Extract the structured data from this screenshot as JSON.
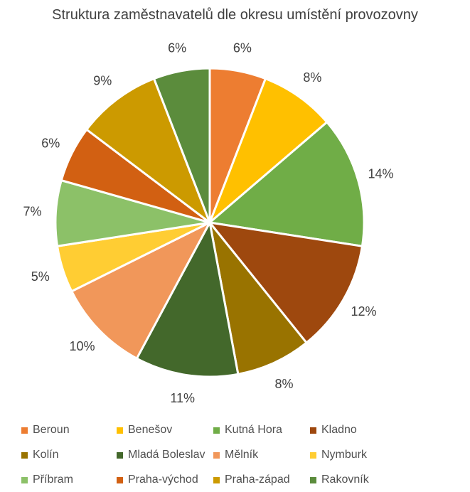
{
  "chart_data": {
    "type": "pie",
    "title": "Struktura zaměstnavatelů dle okresu umístění provozovny",
    "legend_position": "bottom",
    "slices": [
      {
        "label": "Beroun",
        "value": 6,
        "display": "6%",
        "color": "#ED7D31"
      },
      {
        "label": "Benešov",
        "value": 8,
        "display": "8%",
        "color": "#FFC000"
      },
      {
        "label": "Kutná Hora",
        "value": 14,
        "display": "14%",
        "color": "#70AD47"
      },
      {
        "label": "Kladno",
        "value": 12,
        "display": "12%",
        "color": "#9E480E"
      },
      {
        "label": "Kolín",
        "value": 8,
        "display": "8%",
        "color": "#997300"
      },
      {
        "label": "Mladá Boleslav",
        "value": 11,
        "display": "11%",
        "color": "#43682B"
      },
      {
        "label": "Mělník",
        "value": 10,
        "display": "10%",
        "color": "#F1975A"
      },
      {
        "label": "Nymburk",
        "value": 5,
        "display": "5%",
        "color": "#FFCD33"
      },
      {
        "label": "Příbram",
        "value": 7,
        "display": "7%",
        "color": "#8CC168"
      },
      {
        "label": "Praha-východ",
        "value": 6,
        "display": "6%",
        "color": "#D26012"
      },
      {
        "label": "Praha-západ",
        "value": 9,
        "display": "9%",
        "color": "#CC9A00"
      },
      {
        "label": "Rakovník",
        "value": 6,
        "display": "6%",
        "color": "#5B8C3C"
      }
    ]
  }
}
